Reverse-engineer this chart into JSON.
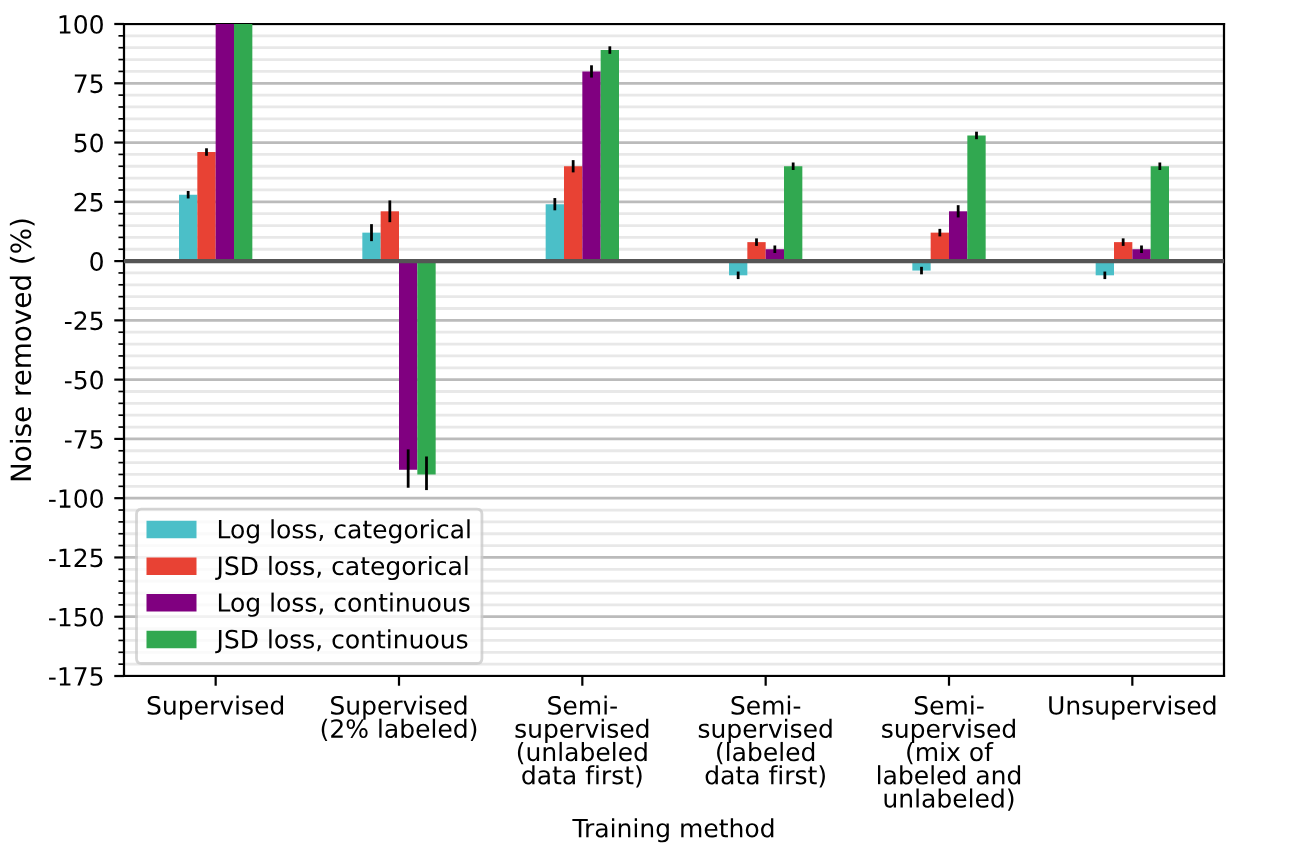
{
  "chart_data": {
    "type": "bar",
    "xlabel": "Training method",
    "ylabel": "Noise removed (%)",
    "categories": [
      "Supervised",
      "Supervised\n(2% labeled)",
      "Semi-\nsupervised\n(unlabeled\ndata first)",
      "Semi-\nsupervised\n(labeled\ndata first)",
      "Semi-\nsupervised\n(mix of\nlabeled and\nunlabeled)",
      "Unsupervised"
    ],
    "series": [
      {
        "name": "Log loss, categorical",
        "color": "#4bbfc8",
        "values": [
          28,
          12,
          24,
          -6,
          -4,
          -6
        ],
        "errors": [
          1,
          3,
          2,
          1,
          1,
          1
        ]
      },
      {
        "name": "JSD loss, categorical",
        "color": "#e84234",
        "values": [
          46,
          21,
          40,
          8,
          12,
          8
        ],
        "errors": [
          1,
          4,
          2,
          1,
          1,
          1
        ]
      },
      {
        "name": "Log loss, continuous",
        "color": "#800080",
        "values": [
          100,
          -88,
          80,
          5,
          21,
          5
        ],
        "errors": [
          null,
          [
            -95,
            -80
          ],
          2,
          1,
          2,
          1
        ]
      },
      {
        "name": "JSD loss, continuous",
        "color": "#31a850",
        "values": [
          100,
          -90,
          89,
          40,
          53,
          40
        ],
        "errors": [
          null,
          [
            -96,
            -83
          ],
          1,
          1,
          1,
          1
        ]
      }
    ],
    "ylim": [
      -175,
      100
    ],
    "yticks": [
      -175,
      -150,
      -125,
      -100,
      -75,
      -50,
      -25,
      0,
      25,
      50,
      75,
      100
    ],
    "ref_lines": [
      {
        "axis": "y",
        "value": 0,
        "color": "#555555"
      }
    ],
    "grid": "y",
    "legend": "bottom left"
  }
}
